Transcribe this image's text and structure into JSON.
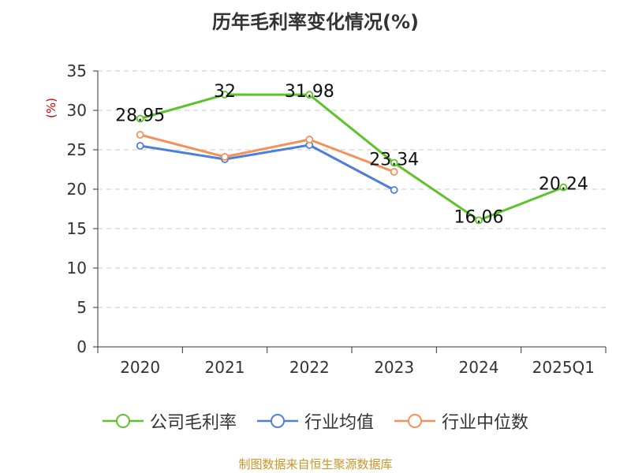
{
  "chart_data": {
    "type": "line",
    "title": "历年毛利率变化情况(%)",
    "ylabel": "(%)",
    "xlabel": "",
    "categories": [
      "2020",
      "2021",
      "2022",
      "2023",
      "2024",
      "2025Q1"
    ],
    "ylim": [
      0,
      35
    ],
    "yticks": [
      0,
      5,
      10,
      15,
      20,
      25,
      30,
      35
    ],
    "grid": "horizontal-dashed",
    "legend_position": "bottom",
    "series": [
      {
        "name": "公司毛利率",
        "color": "#5ec22a",
        "values": [
          28.95,
          32,
          31.98,
          23.34,
          16.06,
          20.24
        ],
        "labels": [
          "28.95",
          "32",
          "31.98",
          "23.34",
          "16.06",
          "20.24"
        ]
      },
      {
        "name": "行业均值",
        "color": "#4e7fd8",
        "values": [
          25.5,
          23.8,
          25.6,
          19.9,
          null,
          null
        ],
        "labels": null
      },
      {
        "name": "行业中位数",
        "color": "#f4905a",
        "values": [
          26.9,
          24.1,
          26.3,
          22.2,
          null,
          null
        ],
        "labels": null
      }
    ]
  },
  "source": "制图数据来自恒生聚源数据库"
}
